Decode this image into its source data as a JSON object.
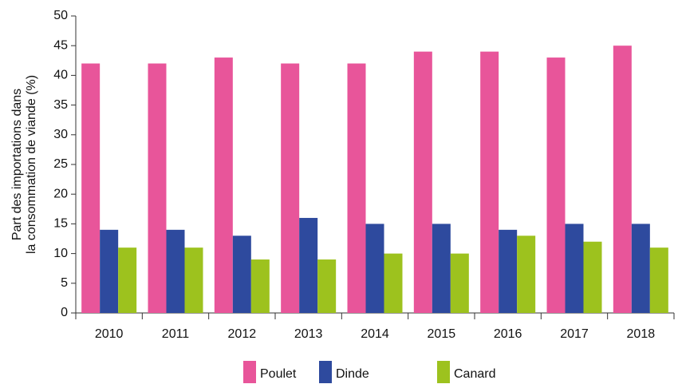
{
  "chart_data": {
    "type": "bar",
    "ylabel": [
      "Part des importations dans",
      "la consommation de viande (%)"
    ],
    "categories": [
      "2010",
      "2011",
      "2012",
      "2013",
      "2014",
      "2015",
      "2016",
      "2017",
      "2018"
    ],
    "series": [
      {
        "name": "Poulet",
        "color": "#e8559a",
        "values": [
          42,
          42,
          43,
          42,
          42,
          44,
          44,
          43,
          45
        ]
      },
      {
        "name": "Dinde",
        "color": "#2e4a9e",
        "values": [
          14,
          14,
          13,
          16,
          15,
          15,
          14,
          15,
          15
        ]
      },
      {
        "name": "Canard",
        "color": "#9dc21e",
        "values": [
          11,
          11,
          9,
          9,
          10,
          10,
          13,
          12,
          11
        ]
      }
    ],
    "ylim": [
      0,
      50
    ],
    "yticks": [
      0,
      5,
      10,
      15,
      20,
      25,
      30,
      35,
      40,
      45,
      50
    ],
    "legend": "bottom"
  }
}
